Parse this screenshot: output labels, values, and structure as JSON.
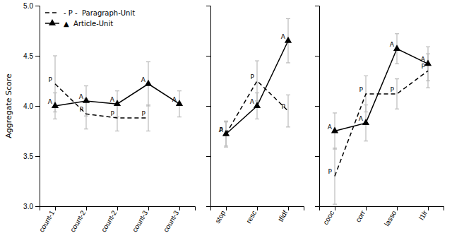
{
  "chart_data": [
    {
      "type": "line",
      "ylabel": "Aggregate Score",
      "categories": [
        "count-1",
        "count-2",
        "count-2",
        "count-3",
        "count-3"
      ],
      "series": [
        {
          "name": "- P -  Paragraph-Unit",
          "color": "black",
          "line_style": "dashed",
          "annotation": "P",
          "values": [
            4.22,
            3.92,
            3.88,
            3.88,
            null
          ],
          "errors": [
            0.28,
            0.15,
            0.13,
            0.13,
            null
          ]
        },
        {
          "name": "▲  Article-Unit",
          "color": "black",
          "line_style": "solid",
          "marker": "triangle",
          "annotation": "A",
          "values": [
            4.0,
            4.05,
            4.02,
            4.22,
            4.02
          ],
          "errors": [
            0.13,
            0.15,
            0.13,
            0.22,
            0.13
          ]
        }
      ],
      "ylim": [
        3.0,
        5.0
      ],
      "yticks": [
        {
          "value": 3.0,
          "label": "3.0"
        },
        {
          "value": 3.5,
          "label": "3.5"
        },
        {
          "value": 4.0,
          "label": "4.0"
        },
        {
          "value": 4.5,
          "label": "4.5"
        },
        {
          "value": 5.0,
          "label": "5.0"
        }
      ],
      "legend": "upper left"
    },
    {
      "type": "line",
      "categories": [
        "stop",
        "resc",
        "tfidf"
      ],
      "series": [
        {
          "name": "- P -  Paragraph-Unit",
          "color": "black",
          "line_style": "dashed",
          "annotation": "P",
          "values": [
            3.72,
            4.25,
            3.95
          ],
          "errors": [
            0.13,
            0.2,
            0.16
          ]
        },
        {
          "name": "▲  Article-Unit",
          "color": "black",
          "line_style": "solid",
          "marker": "triangle",
          "annotation": "A",
          "values": [
            3.72,
            4.0,
            4.65
          ],
          "errors": [
            0.12,
            0.13,
            0.22
          ]
        }
      ],
      "ylim": [
        3.0,
        5.0
      ],
      "yticks": [
        3.0,
        3.5,
        4.0,
        4.5,
        5.0
      ],
      "tick_labels": "x"
    },
    {
      "type": "line",
      "categories": [
        "cooc",
        "corr",
        "lasso",
        "l1lr"
      ],
      "series": [
        {
          "name": "- P -  Paragraph-Unit",
          "color": "black",
          "line_style": "dashed",
          "annotation": "P",
          "values": [
            3.3,
            4.12,
            4.12,
            4.35
          ],
          "errors": [
            0.28,
            0.18,
            0.15,
            0.17
          ]
        },
        {
          "name": "▲  Article-Unit",
          "color": "black",
          "line_style": "solid",
          "marker": "triangle",
          "annotation": "A",
          "values": [
            3.75,
            3.83,
            4.57,
            4.42
          ],
          "errors": [
            0.18,
            0.18,
            0.15,
            0.17
          ]
        }
      ],
      "ylim": [
        3.0,
        5.0
      ],
      "yticks": [
        3.0,
        3.5,
        4.0,
        4.5,
        5.0
      ],
      "tick_labels": "x"
    }
  ]
}
